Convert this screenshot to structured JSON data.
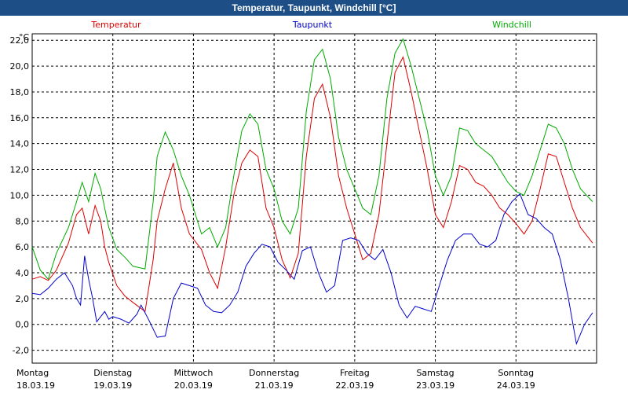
{
  "window": {
    "title": "Temperatur, Taupunkt, Windchill [°C]"
  },
  "colors": {
    "title_bar": "#1d4f86",
    "temperatur": "#dd0000",
    "taupunkt": "#0000cc",
    "windchill": "#00aa00",
    "grid": "#000000"
  },
  "chart_data": {
    "type": "line",
    "title": "Temperatur, Taupunkt, Windchill [°C]",
    "ylabel": "°C",
    "ylim": [
      -3,
      22.5
    ],
    "xlim": [
      0,
      7
    ],
    "grid": true,
    "legend_position": "top",
    "y_ticks": [
      "22,0",
      "20,0",
      "18,0",
      "16,0",
      "14,0",
      "12,0",
      "10,0",
      "8,0",
      "6,0",
      "4,0",
      "2,0",
      "0,0",
      "-2,0"
    ],
    "y_tick_values": [
      22,
      20,
      18,
      16,
      14,
      12,
      10,
      8,
      6,
      4,
      2,
      0,
      -2
    ],
    "x_ticks": [
      {
        "day": "Montag",
        "date": "18.03.19"
      },
      {
        "day": "Dienstag",
        "date": "19.03.19"
      },
      {
        "day": "Mittwoch",
        "date": "20.03.19"
      },
      {
        "day": "Donnerstag",
        "date": "21.03.19"
      },
      {
        "day": "Freitag",
        "date": "22.03.19"
      },
      {
        "day": "Samstag",
        "date": "23.03.19"
      },
      {
        "day": "Sonntag",
        "date": "24.03.19"
      }
    ],
    "series": [
      {
        "name": "Temperatur",
        "x": [
          0,
          0.1,
          0.2,
          0.3,
          0.45,
          0.55,
          0.62,
          0.7,
          0.78,
          0.85,
          0.9,
          0.95,
          1.05,
          1.15,
          1.25,
          1.4,
          1.5,
          1.55,
          1.65,
          1.75,
          1.85,
          1.95,
          2.1,
          2.2,
          2.3,
          2.4,
          2.5,
          2.6,
          2.7,
          2.8,
          2.9,
          3.0,
          3.1,
          3.2,
          3.3,
          3.4,
          3.5,
          3.6,
          3.7,
          3.8,
          3.9,
          4.0,
          4.1,
          4.2,
          4.3,
          4.4,
          4.5,
          4.6,
          4.7,
          4.8,
          4.9,
          5.0,
          5.1,
          5.2,
          5.3,
          5.4,
          5.5,
          5.6,
          5.7,
          5.8,
          5.9,
          6.0,
          6.1,
          6.2,
          6.3,
          6.4,
          6.5,
          6.6,
          6.7,
          6.8,
          6.95
        ],
        "values": [
          3.5,
          3.7,
          3.4,
          4.2,
          6.3,
          8.5,
          9.0,
          7.0,
          9.2,
          8.0,
          6.0,
          4.8,
          3.0,
          2.2,
          1.7,
          1.0,
          5.0,
          8.0,
          10.5,
          12.5,
          9.0,
          7.0,
          5.8,
          4.0,
          2.8,
          6.0,
          10.0,
          12.5,
          13.5,
          13.0,
          9.0,
          7.5,
          5.0,
          3.6,
          5.5,
          13.0,
          17.5,
          18.6,
          16.0,
          11.5,
          9.0,
          7.0,
          5.0,
          5.5,
          8.5,
          14.0,
          19.5,
          20.7,
          18.0,
          15.0,
          12.0,
          8.5,
          7.5,
          9.5,
          12.3,
          12.0,
          11.0,
          10.7,
          10.0,
          9.0,
          8.5,
          7.8,
          7.0,
          8.0,
          10.5,
          13.2,
          13.0,
          11.0,
          9.0,
          7.5,
          6.3
        ]
      },
      {
        "name": "Taupunkt",
        "x": [
          0,
          0.1,
          0.2,
          0.3,
          0.4,
          0.5,
          0.55,
          0.6,
          0.65,
          0.7,
          0.75,
          0.8,
          0.9,
          0.95,
          1.0,
          1.1,
          1.2,
          1.3,
          1.35,
          1.45,
          1.55,
          1.65,
          1.75,
          1.85,
          1.95,
          2.05,
          2.15,
          2.25,
          2.35,
          2.45,
          2.55,
          2.65,
          2.75,
          2.85,
          2.95,
          3.05,
          3.15,
          3.25,
          3.35,
          3.45,
          3.55,
          3.65,
          3.75,
          3.85,
          3.95,
          4.05,
          4.15,
          4.25,
          4.35,
          4.45,
          4.55,
          4.65,
          4.75,
          4.85,
          4.95,
          5.05,
          5.15,
          5.25,
          5.35,
          5.45,
          5.55,
          5.65,
          5.75,
          5.85,
          5.95,
          6.05,
          6.15,
          6.25,
          6.35,
          6.45,
          6.55,
          6.65,
          6.75,
          6.85,
          6.95
        ],
        "values": [
          2.4,
          2.3,
          2.8,
          3.5,
          4.0,
          3.0,
          2.0,
          1.5,
          5.3,
          3.5,
          2.0,
          0.2,
          1.0,
          0.4,
          0.6,
          0.4,
          0.1,
          0.8,
          1.5,
          0.3,
          -1.0,
          -0.9,
          2.0,
          3.2,
          3.0,
          2.8,
          1.5,
          1.0,
          0.9,
          1.5,
          2.5,
          4.5,
          5.5,
          6.2,
          6.0,
          4.8,
          4.2,
          3.5,
          5.7,
          6.0,
          4.0,
          2.5,
          3.0,
          6.5,
          6.7,
          6.5,
          5.5,
          5.0,
          5.8,
          4.0,
          1.5,
          0.5,
          1.4,
          1.2,
          1.0,
          3.0,
          5.0,
          6.5,
          7.0,
          7.0,
          6.2,
          6.0,
          6.5,
          8.5,
          9.5,
          10.1,
          8.5,
          8.2,
          7.5,
          7.0,
          5.0,
          2.0,
          -1.5,
          0.0,
          0.9
        ]
      },
      {
        "name": "Windchill",
        "x": [
          0,
          0.1,
          0.2,
          0.3,
          0.45,
          0.55,
          0.62,
          0.7,
          0.78,
          0.85,
          0.9,
          0.95,
          1.05,
          1.15,
          1.25,
          1.4,
          1.5,
          1.55,
          1.65,
          1.75,
          1.85,
          1.95,
          2.1,
          2.2,
          2.3,
          2.4,
          2.5,
          2.6,
          2.7,
          2.8,
          2.9,
          3.0,
          3.1,
          3.2,
          3.3,
          3.4,
          3.5,
          3.6,
          3.7,
          3.8,
          3.9,
          4.0,
          4.1,
          4.2,
          4.3,
          4.4,
          4.5,
          4.6,
          4.7,
          4.8,
          4.9,
          5.0,
          5.1,
          5.2,
          5.3,
          5.4,
          5.5,
          5.6,
          5.7,
          5.8,
          5.9,
          6.0,
          6.1,
          6.2,
          6.3,
          6.4,
          6.5,
          6.6,
          6.7,
          6.8,
          6.95
        ],
        "values": [
          6.0,
          4.2,
          3.5,
          5.5,
          7.5,
          9.5,
          11.0,
          9.5,
          11.7,
          10.5,
          9.0,
          7.5,
          5.8,
          5.2,
          4.5,
          4.3,
          9.5,
          13.0,
          14.9,
          13.5,
          11.5,
          10.0,
          7.0,
          7.5,
          6.0,
          7.5,
          11.5,
          15.0,
          16.3,
          15.5,
          12.0,
          10.5,
          8.0,
          7.0,
          9.0,
          16.5,
          20.5,
          21.3,
          19.0,
          14.5,
          12.0,
          10.5,
          9.0,
          8.5,
          11.5,
          17.5,
          21.0,
          22.1,
          20.0,
          17.5,
          15.0,
          11.5,
          10.0,
          11.5,
          15.2,
          15.0,
          14.0,
          13.5,
          13.0,
          12.0,
          11.0,
          10.3,
          10.0,
          11.5,
          13.5,
          15.5,
          15.2,
          14.0,
          12.0,
          10.5,
          9.5
        ]
      }
    ]
  }
}
